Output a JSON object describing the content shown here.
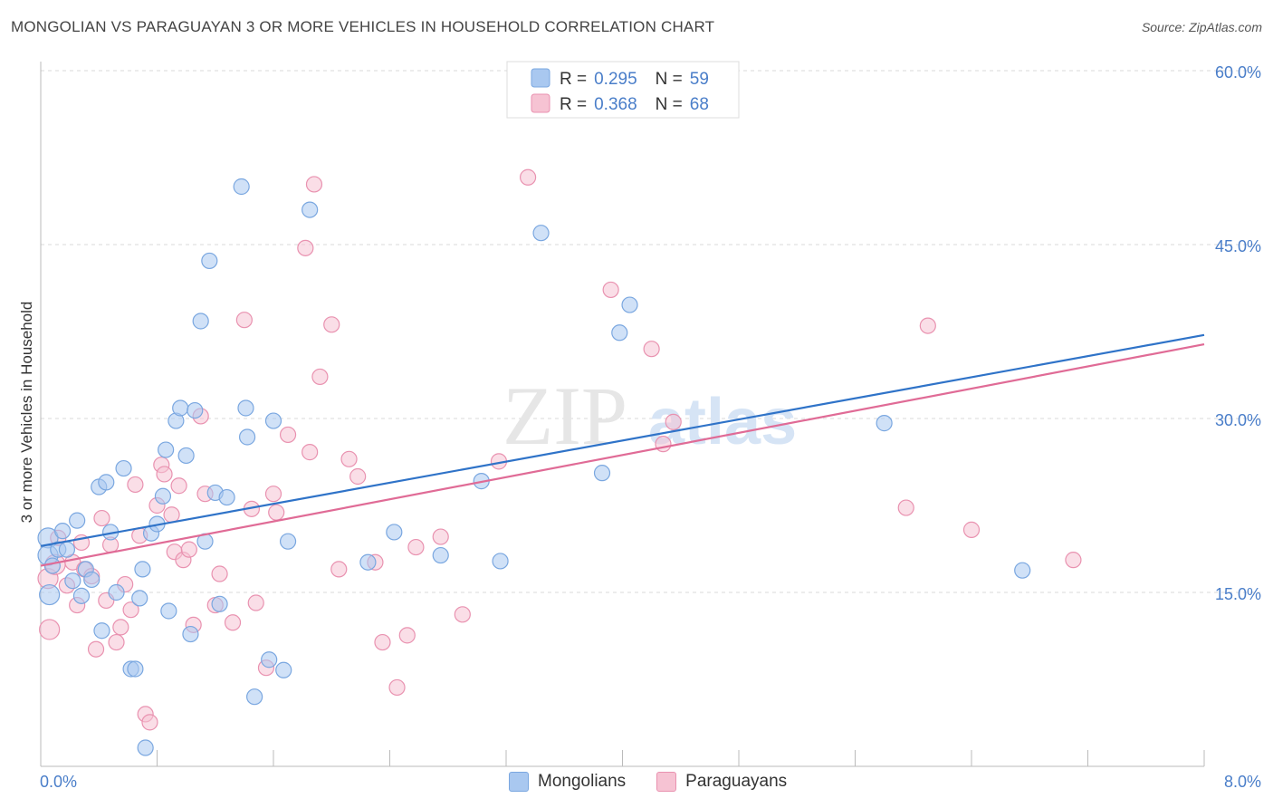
{
  "header": {
    "title": "MONGOLIAN VS PARAGUAYAN 3 OR MORE VEHICLES IN HOUSEHOLD CORRELATION CHART",
    "source": "Source: ZipAtlas.com"
  },
  "watermark": {
    "zip": "ZIP",
    "atlas": "atlas"
  },
  "colors": {
    "blue_fill": "#a9c8f0",
    "blue_stroke": "#7aa7e0",
    "blue_line": "#2f73c8",
    "pink_fill": "#f6c3d3",
    "pink_stroke": "#e992b0",
    "pink_line": "#e06b96",
    "axis_label": "#4a7ec9",
    "grid": "#d8d8d8"
  },
  "chart_data": {
    "type": "scatter",
    "title": "MONGOLIAN VS PARAGUAYAN 3 OR MORE VEHICLES IN HOUSEHOLD CORRELATION CHART",
    "xlabel": "",
    "ylabel": "3 or more Vehicles in Household",
    "xlim": [
      0,
      8
    ],
    "ylim": [
      0,
      60
    ],
    "x_tick_labels": [
      "0.0%",
      "8.0%"
    ],
    "y_ticks": [
      15,
      30,
      45,
      60
    ],
    "y_tick_labels": [
      "15.0%",
      "30.0%",
      "45.0%",
      "60.0%"
    ],
    "grid": "horizontal dashed",
    "legend": [
      {
        "name": "Mongolians",
        "r_label": "R =",
        "r_value": "0.295",
        "n_label": "N =",
        "n_value": "59"
      },
      {
        "name": "Paraguayans",
        "r_label": "R =",
        "r_value": "0.368",
        "n_label": "N =",
        "n_value": "68"
      }
    ],
    "series": [
      {
        "name": "Mongolians",
        "trendline": [
          [
            0,
            19.0
          ],
          [
            8,
            37.2
          ]
        ],
        "points": [
          [
            0.05,
            19.7
          ],
          [
            0.05,
            18.2
          ],
          [
            0.06,
            14.8
          ],
          [
            0.12,
            18.7
          ],
          [
            0.15,
            20.3
          ],
          [
            0.18,
            18.7
          ],
          [
            0.22,
            16.0
          ],
          [
            0.25,
            21.2
          ],
          [
            0.28,
            14.7
          ],
          [
            0.31,
            17.0
          ],
          [
            0.35,
            16.1
          ],
          [
            0.4,
            24.1
          ],
          [
            0.42,
            11.7
          ],
          [
            0.45,
            24.5
          ],
          [
            0.48,
            20.2
          ],
          [
            0.52,
            15.0
          ],
          [
            0.57,
            25.7
          ],
          [
            0.62,
            8.4
          ],
          [
            0.65,
            8.4
          ],
          [
            0.68,
            14.5
          ],
          [
            0.7,
            17.0
          ],
          [
            0.72,
            1.6
          ],
          [
            0.76,
            20.1
          ],
          [
            0.8,
            20.9
          ],
          [
            0.84,
            23.3
          ],
          [
            0.86,
            27.3
          ],
          [
            0.88,
            13.4
          ],
          [
            0.93,
            29.8
          ],
          [
            0.96,
            30.9
          ],
          [
            1.0,
            26.8
          ],
          [
            1.03,
            11.4
          ],
          [
            1.06,
            30.7
          ],
          [
            1.1,
            38.4
          ],
          [
            1.13,
            19.4
          ],
          [
            1.16,
            43.6
          ],
          [
            1.2,
            23.6
          ],
          [
            1.23,
            14.0
          ],
          [
            1.28,
            23.2
          ],
          [
            1.38,
            50.0
          ],
          [
            1.41,
            30.9
          ],
          [
            1.42,
            28.4
          ],
          [
            1.47,
            6.0
          ],
          [
            1.57,
            9.2
          ],
          [
            1.6,
            29.8
          ],
          [
            1.67,
            8.3
          ],
          [
            1.7,
            19.4
          ],
          [
            1.85,
            48.0
          ],
          [
            2.25,
            17.6
          ],
          [
            2.43,
            20.2
          ],
          [
            2.75,
            18.2
          ],
          [
            3.03,
            24.6
          ],
          [
            3.16,
            17.7
          ],
          [
            3.44,
            46.0
          ],
          [
            3.86,
            25.3
          ],
          [
            3.98,
            37.4
          ],
          [
            4.05,
            39.8
          ],
          [
            5.8,
            29.6
          ],
          [
            6.75,
            16.9
          ],
          [
            0.08,
            17.3
          ]
        ]
      },
      {
        "name": "Paraguayans",
        "trendline": [
          [
            0,
            17.3
          ],
          [
            8,
            36.4
          ]
        ],
        "points": [
          [
            0.05,
            16.2
          ],
          [
            0.06,
            11.8
          ],
          [
            0.1,
            17.4
          ],
          [
            0.12,
            19.7
          ],
          [
            0.18,
            15.6
          ],
          [
            0.22,
            17.6
          ],
          [
            0.25,
            13.9
          ],
          [
            0.28,
            19.3
          ],
          [
            0.3,
            17.0
          ],
          [
            0.35,
            16.4
          ],
          [
            0.38,
            10.1
          ],
          [
            0.42,
            21.4
          ],
          [
            0.45,
            14.3
          ],
          [
            0.48,
            19.1
          ],
          [
            0.52,
            10.7
          ],
          [
            0.55,
            12.0
          ],
          [
            0.58,
            15.7
          ],
          [
            0.62,
            13.5
          ],
          [
            0.65,
            24.3
          ],
          [
            0.68,
            19.9
          ],
          [
            0.72,
            4.5
          ],
          [
            0.75,
            3.8
          ],
          [
            0.8,
            22.5
          ],
          [
            0.83,
            26.0
          ],
          [
            0.85,
            25.2
          ],
          [
            0.9,
            21.7
          ],
          [
            0.92,
            18.5
          ],
          [
            0.95,
            24.2
          ],
          [
            0.98,
            17.8
          ],
          [
            1.02,
            18.7
          ],
          [
            1.05,
            12.2
          ],
          [
            1.1,
            30.2
          ],
          [
            1.13,
            23.5
          ],
          [
            1.2,
            13.9
          ],
          [
            1.23,
            16.6
          ],
          [
            1.32,
            12.4
          ],
          [
            1.4,
            38.5
          ],
          [
            1.45,
            22.2
          ],
          [
            1.48,
            14.1
          ],
          [
            1.55,
            8.5
          ],
          [
            1.6,
            23.5
          ],
          [
            1.62,
            21.9
          ],
          [
            1.7,
            28.6
          ],
          [
            1.82,
            44.7
          ],
          [
            1.85,
            27.1
          ],
          [
            1.88,
            50.2
          ],
          [
            1.92,
            33.6
          ],
          [
            2.0,
            38.1
          ],
          [
            2.05,
            17.0
          ],
          [
            2.12,
            26.5
          ],
          [
            2.18,
            25.0
          ],
          [
            2.3,
            17.6
          ],
          [
            2.35,
            10.7
          ],
          [
            2.45,
            6.8
          ],
          [
            2.52,
            11.3
          ],
          [
            2.58,
            18.9
          ],
          [
            2.75,
            19.8
          ],
          [
            2.9,
            13.1
          ],
          [
            3.15,
            26.3
          ],
          [
            3.35,
            50.8
          ],
          [
            3.92,
            41.1
          ],
          [
            4.2,
            36.0
          ],
          [
            4.28,
            27.8
          ],
          [
            4.35,
            29.7
          ],
          [
            5.95,
            22.3
          ],
          [
            6.1,
            38.0
          ],
          [
            6.4,
            20.4
          ],
          [
            7.1,
            17.8
          ]
        ]
      }
    ]
  }
}
